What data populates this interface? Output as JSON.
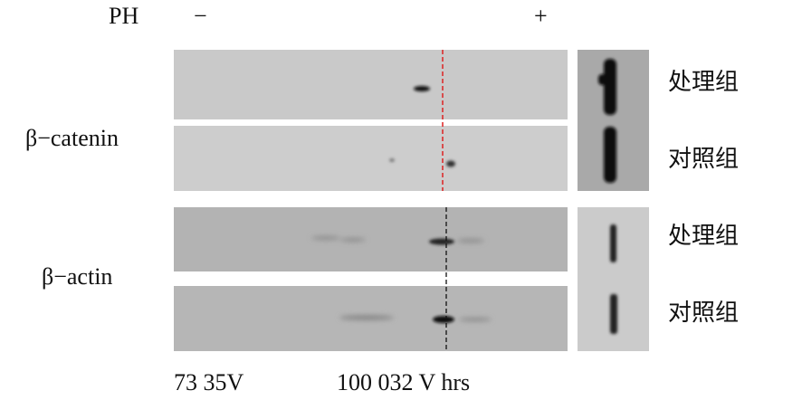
{
  "header": {
    "label": "PH",
    "minus": "−",
    "plus": "+"
  },
  "rows": [
    {
      "label": "β−catenin",
      "lanes": [
        "处理组",
        "对照组"
      ]
    },
    {
      "label": "β−actin",
      "lanes": [
        "处理组",
        "对照组"
      ]
    }
  ],
  "footer": [
    "73 35V",
    "100 032 V hrs"
  ]
}
